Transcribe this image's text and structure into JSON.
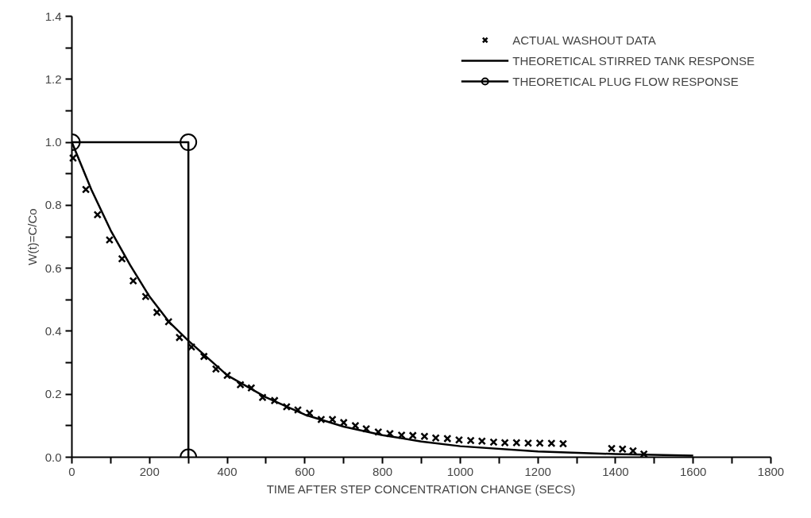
{
  "chart_data": {
    "type": "line",
    "xlabel": "TIME AFTER STEP CONCENTRATION CHANGE (SECS)",
    "ylabel": "W(t)=C/Co",
    "xlim": [
      0,
      1800
    ],
    "ylim": [
      0,
      1.4
    ],
    "xticks": [
      0,
      {
        "value": 100,
        "label": null
      },
      200,
      {
        "value": 300,
        "label": null
      },
      400,
      {
        "value": 500,
        "label": null
      },
      600,
      {
        "value": 700,
        "label": null
      },
      800,
      {
        "value": 900,
        "label": null
      },
      1000,
      {
        "value": 1100,
        "label": null
      },
      1200,
      {
        "value": 1300,
        "label": null
      },
      1400,
      {
        "value": 1500,
        "label": null
      },
      1600,
      {
        "value": 1700,
        "label": null
      },
      1800
    ],
    "yticks": [
      {
        "value": 0,
        "label": "0.0"
      },
      {
        "value": 0.1,
        "label": null
      },
      0.2,
      {
        "value": 0.3,
        "label": null
      },
      0.4,
      {
        "value": 0.5,
        "label": null
      },
      0.6,
      {
        "value": 0.7,
        "label": null
      },
      0.8,
      {
        "value": 0.9,
        "label": null
      },
      {
        "value": 1.0,
        "label": "1.0"
      },
      {
        "value": 1.1,
        "label": null
      },
      1.2,
      {
        "value": 1.3,
        "label": null
      },
      1.4
    ],
    "grid": false,
    "legend": "top right",
    "series": [
      {
        "name": "ACTUAL WASHOUT DATA",
        "type": "scatter",
        "marker": "cross",
        "color": "#000000",
        "x": [
          3,
          36,
          66,
          97,
          129,
          158,
          190,
          219,
          249,
          277,
          308,
          340,
          371,
          400,
          434,
          462,
          491,
          522,
          553,
          582,
          612,
          642,
          671,
          700,
          730,
          758,
          789,
          819,
          849,
          878,
          908,
          937,
          967,
          997,
          1027,
          1056,
          1086,
          1115,
          1145,
          1175,
          1205,
          1235,
          1265,
          1390,
          1418,
          1445,
          1473
        ],
        "values": [
          0.95,
          0.85,
          0.77,
          0.69,
          0.63,
          0.56,
          0.51,
          0.46,
          0.43,
          0.38,
          0.35,
          0.32,
          0.28,
          0.26,
          0.23,
          0.22,
          0.19,
          0.18,
          0.16,
          0.15,
          0.14,
          0.12,
          0.12,
          0.11,
          0.1,
          0.09,
          0.08,
          0.075,
          0.07,
          0.069,
          0.066,
          0.061,
          0.059,
          0.055,
          0.053,
          0.051,
          0.048,
          0.046,
          0.046,
          0.045,
          0.045,
          0.044,
          0.043,
          0.028,
          0.026,
          0.02,
          0.01
        ]
      },
      {
        "name": "THEORETICAL STIRRED TANK RESPONSE",
        "marker": "none",
        "color": "#000000",
        "x": [
          0,
          50,
          100,
          150,
          200,
          250,
          300,
          400,
          500,
          600,
          700,
          800,
          900,
          1000,
          1200,
          1400,
          1600
        ],
        "values": [
          1.0,
          0.85,
          0.72,
          0.61,
          0.51,
          0.43,
          0.37,
          0.26,
          0.19,
          0.135,
          0.097,
          0.07,
          0.05,
          0.035,
          0.018,
          0.01,
          0.005
        ]
      },
      {
        "name": "THEORETICAL PLUG FLOW RESPONSE",
        "marker": "circle",
        "color": "#000000",
        "x": [
          0,
          300,
          300
        ],
        "values": [
          1.0,
          1.0,
          0.0
        ]
      }
    ]
  }
}
